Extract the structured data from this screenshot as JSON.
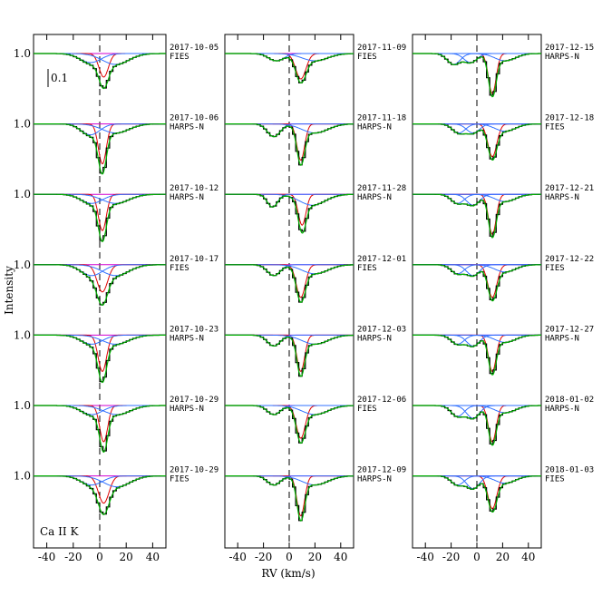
{
  "y_label": "Intensity",
  "x_label": "RV (km/s)",
  "scale_bar": 0.1,
  "annotation": "Ca II K",
  "chart_data": [
    {
      "type": "line",
      "xlim": [
        -50,
        50
      ],
      "xticks": [
        -40,
        -20,
        0,
        20,
        40
      ],
      "yticks": [
        {
          "value": 1,
          "label": "1.0"
        }
      ],
      "spectra": [
        {
          "date": "2017-10-05",
          "instrument": "FIES",
          "components": [
            {
              "center": 3,
              "depth": 0.13,
              "width": 3.5,
              "color": "#e00000"
            },
            {
              "center": -7,
              "depth": 0.05,
              "width": 8,
              "color": "#3070ff"
            },
            {
              "center": 12,
              "depth": 0.06,
              "width": 10,
              "color": "#3070ff"
            }
          ]
        },
        {
          "date": "2017-10-06",
          "instrument": "HARPS-N",
          "components": [
            {
              "center": 2,
              "depth": 0.22,
              "width": 3,
              "color": "#e00000"
            },
            {
              "center": -7,
              "depth": 0.06,
              "width": 7,
              "color": "#3070ff"
            },
            {
              "center": 12,
              "depth": 0.05,
              "width": 10,
              "color": "#3070ff"
            }
          ]
        },
        {
          "date": "2017-10-12",
          "instrument": "HARPS-N",
          "components": [
            {
              "center": 2,
              "depth": 0.2,
              "width": 3,
              "color": "#e00000"
            },
            {
              "center": -6,
              "depth": 0.05,
              "width": 8,
              "color": "#3070ff"
            },
            {
              "center": 12,
              "depth": 0.05,
              "width": 10,
              "color": "#3070ff"
            }
          ]
        },
        {
          "date": "2017-10-17",
          "instrument": "FIES",
          "components": [
            {
              "center": 2,
              "depth": 0.15,
              "width": 4,
              "color": "#e00000"
            },
            {
              "center": -6,
              "depth": 0.06,
              "width": 8,
              "color": "#3070ff"
            },
            {
              "center": 12,
              "depth": 0.06,
              "width": 10,
              "color": "#3070ff"
            }
          ]
        },
        {
          "date": "2017-10-23",
          "instrument": "HARPS-N",
          "components": [
            {
              "center": 2,
              "depth": 0.2,
              "width": 3.2,
              "color": "#e00000"
            },
            {
              "center": -6,
              "depth": 0.05,
              "width": 8,
              "color": "#3070ff"
            },
            {
              "center": 12,
              "depth": 0.05,
              "width": 10,
              "color": "#3070ff"
            }
          ]
        },
        {
          "date": "2017-10-29",
          "instrument": "HARPS-N",
          "components": [
            {
              "center": 3,
              "depth": 0.2,
              "width": 3,
              "color": "#e00000"
            },
            {
              "center": -6,
              "depth": 0.05,
              "width": 8,
              "color": "#3070ff"
            },
            {
              "center": 13,
              "depth": 0.05,
              "width": 10,
              "color": "#3070ff"
            }
          ]
        },
        {
          "date": "2017-10-29",
          "instrument": "FIES",
          "components": [
            {
              "center": 3,
              "depth": 0.15,
              "width": 4,
              "color": "#e00000"
            },
            {
              "center": -6,
              "depth": 0.05,
              "width": 8,
              "color": "#3070ff"
            },
            {
              "center": 13,
              "depth": 0.06,
              "width": 10,
              "color": "#3070ff"
            }
          ]
        }
      ]
    },
    {
      "type": "line",
      "xlim": [
        -50,
        50
      ],
      "xticks": [
        -40,
        -20,
        0,
        20,
        40
      ],
      "spectra": [
        {
          "date": "2017-11-09",
          "instrument": "FIES",
          "components": [
            {
              "center": 9,
              "depth": 0.14,
              "width": 4,
              "color": "#e00000"
            },
            {
              "center": -10,
              "depth": 0.04,
              "width": 6,
              "color": "#3070ff"
            },
            {
              "center": 20,
              "depth": 0.04,
              "width": 10,
              "color": "#3070ff"
            }
          ]
        },
        {
          "date": "2017-11-18",
          "instrument": "HARPS-N",
          "components": [
            {
              "center": 9,
              "depth": 0.2,
              "width": 3,
              "color": "#e00000"
            },
            {
              "center": -12,
              "depth": 0.07,
              "width": 5,
              "color": "#3070ff"
            },
            {
              "center": 20,
              "depth": 0.05,
              "width": 10,
              "color": "#3070ff"
            }
          ]
        },
        {
          "date": "2017-11-28",
          "instrument": "HARPS-N",
          "components": [
            {
              "center": 10,
              "depth": 0.17,
              "width": 3,
              "color": "#e00000"
            },
            {
              "center": -13,
              "depth": 0.07,
              "width": 4,
              "color": "#3070ff"
            },
            {
              "center": 18,
              "depth": 0.06,
              "width": 10,
              "color": "#3070ff"
            }
          ]
        },
        {
          "date": "2017-12-01",
          "instrument": "FIES",
          "components": [
            {
              "center": 9,
              "depth": 0.18,
              "width": 3.5,
              "color": "#e00000"
            },
            {
              "center": -12,
              "depth": 0.06,
              "width": 5,
              "color": "#3070ff"
            },
            {
              "center": 20,
              "depth": 0.05,
              "width": 10,
              "color": "#3070ff"
            }
          ]
        },
        {
          "date": "2017-12-03",
          "instrument": "HARPS-N",
          "components": [
            {
              "center": 9,
              "depth": 0.2,
              "width": 3,
              "color": "#e00000"
            },
            {
              "center": -12,
              "depth": 0.06,
              "width": 5,
              "color": "#3070ff"
            },
            {
              "center": 20,
              "depth": 0.05,
              "width": 10,
              "color": "#3070ff"
            }
          ]
        },
        {
          "date": "2017-12-06",
          "instrument": "FIES",
          "components": [
            {
              "center": 9,
              "depth": 0.18,
              "width": 3.5,
              "color": "#e00000"
            },
            {
              "center": -12,
              "depth": 0.05,
              "width": 5,
              "color": "#3070ff"
            },
            {
              "center": 20,
              "depth": 0.05,
              "width": 10,
              "color": "#3070ff"
            }
          ]
        },
        {
          "date": "2017-12-09",
          "instrument": "HARPS-N",
          "components": [
            {
              "center": 9,
              "depth": 0.22,
              "width": 3,
              "color": "#e00000"
            },
            {
              "center": -12,
              "depth": 0.05,
              "width": 5,
              "color": "#3070ff"
            },
            {
              "center": 20,
              "depth": 0.05,
              "width": 10,
              "color": "#3070ff"
            }
          ]
        }
      ]
    },
    {
      "type": "line",
      "xlim": [
        -50,
        50
      ],
      "xticks": [
        -40,
        -20,
        0,
        20,
        40
      ],
      "spectra": [
        {
          "date": "2017-12-15",
          "instrument": "HARPS-N",
          "components": [
            {
              "center": 12,
              "depth": 0.22,
              "width": 3,
              "color": "#e00000"
            },
            {
              "center": -18,
              "depth": 0.06,
              "width": 5,
              "color": "#3070ff"
            },
            {
              "center": -5,
              "depth": 0.05,
              "width": 5,
              "color": "#3070ff"
            },
            {
              "center": 22,
              "depth": 0.04,
              "width": 8,
              "color": "#3070ff"
            }
          ]
        },
        {
          "date": "2017-12-18",
          "instrument": "FIES",
          "components": [
            {
              "center": 12,
              "depth": 0.18,
              "width": 3.5,
              "color": "#e00000"
            },
            {
              "center": -14,
              "depth": 0.05,
              "width": 5,
              "color": "#3070ff"
            },
            {
              "center": -3,
              "depth": 0.05,
              "width": 5,
              "color": "#3070ff"
            },
            {
              "center": 22,
              "depth": 0.04,
              "width": 8,
              "color": "#3070ff"
            }
          ]
        },
        {
          "date": "2017-12-21",
          "instrument": "HARPS-N",
          "components": [
            {
              "center": 12,
              "depth": 0.22,
              "width": 3,
              "color": "#e00000"
            },
            {
              "center": -15,
              "depth": 0.05,
              "width": 5,
              "color": "#3070ff"
            },
            {
              "center": -3,
              "depth": 0.06,
              "width": 5,
              "color": "#3070ff"
            },
            {
              "center": 22,
              "depth": 0.04,
              "width": 8,
              "color": "#3070ff"
            }
          ]
        },
        {
          "date": "2017-12-22",
          "instrument": "FIES",
          "components": [
            {
              "center": 12,
              "depth": 0.18,
              "width": 3.5,
              "color": "#e00000"
            },
            {
              "center": -15,
              "depth": 0.05,
              "width": 5,
              "color": "#3070ff"
            },
            {
              "center": -3,
              "depth": 0.06,
              "width": 5,
              "color": "#3070ff"
            },
            {
              "center": 22,
              "depth": 0.04,
              "width": 8,
              "color": "#3070ff"
            }
          ]
        },
        {
          "date": "2017-12-27",
          "instrument": "HARPS-N",
          "components": [
            {
              "center": 12,
              "depth": 0.2,
              "width": 3,
              "color": "#e00000"
            },
            {
              "center": -15,
              "depth": 0.05,
              "width": 5,
              "color": "#3070ff"
            },
            {
              "center": -3,
              "depth": 0.06,
              "width": 5,
              "color": "#3070ff"
            },
            {
              "center": 22,
              "depth": 0.04,
              "width": 8,
              "color": "#3070ff"
            }
          ]
        },
        {
          "date": "2018-01-02",
          "instrument": "HARPS-N",
          "components": [
            {
              "center": 12,
              "depth": 0.2,
              "width": 3,
              "color": "#e00000"
            },
            {
              "center": -15,
              "depth": 0.06,
              "width": 5,
              "color": "#3070ff"
            },
            {
              "center": -3,
              "depth": 0.07,
              "width": 5,
              "color": "#3070ff"
            },
            {
              "center": 22,
              "depth": 0.04,
              "width": 8,
              "color": "#3070ff"
            }
          ]
        },
        {
          "date": "2018-01-03",
          "instrument": "FIES",
          "components": [
            {
              "center": 12,
              "depth": 0.18,
              "width": 3.5,
              "color": "#e00000"
            },
            {
              "center": -15,
              "depth": 0.05,
              "width": 5,
              "color": "#3070ff"
            },
            {
              "center": -3,
              "depth": 0.07,
              "width": 5,
              "color": "#3070ff"
            },
            {
              "center": 22,
              "depth": 0.04,
              "width": 8,
              "color": "#3070ff"
            }
          ]
        }
      ]
    }
  ]
}
